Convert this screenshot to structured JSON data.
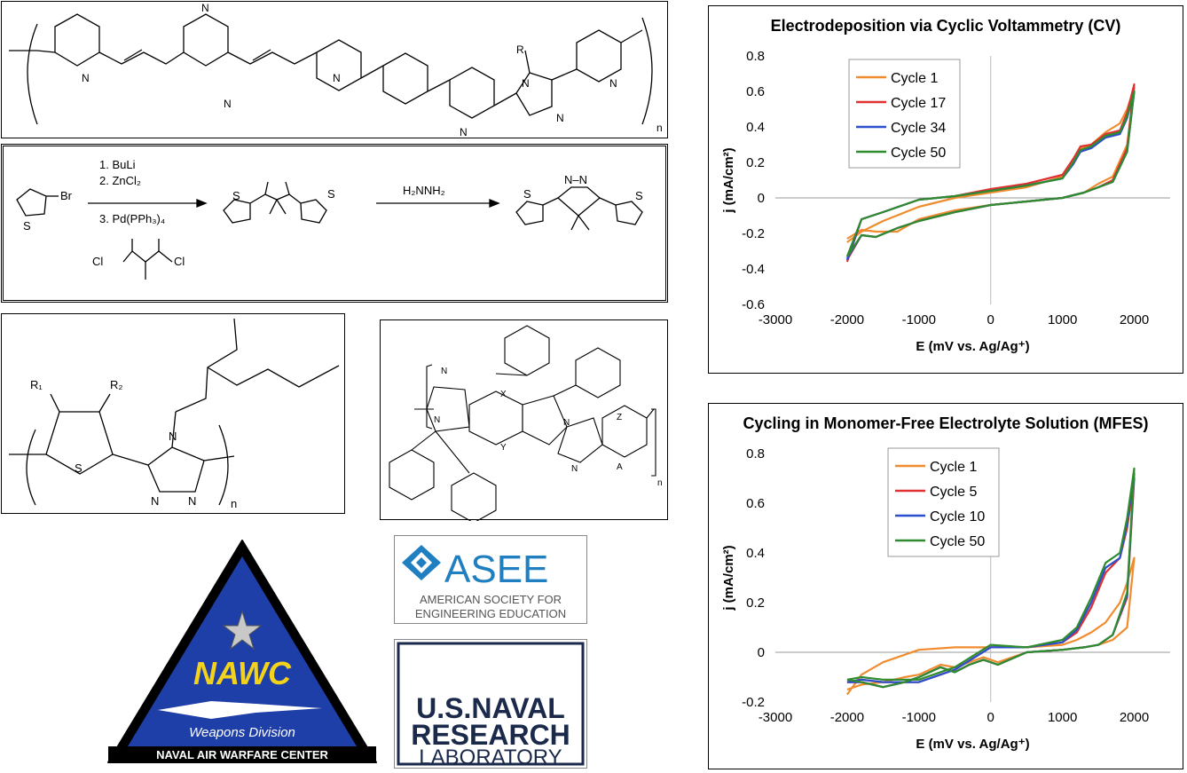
{
  "scheme": {
    "n": "n",
    "r": "R",
    "n_atom": "N",
    "s_atom": "S",
    "br": "Br",
    "cl": "Cl",
    "steps": [
      "1. BuLi",
      "2. ZnCl₂",
      "3. Pd(PPh₃)₄"
    ],
    "hydrazine": "H₂NNH₂",
    "nn": "N–N",
    "r1": "R₁",
    "r2": "R₂",
    "x": "X",
    "y": "Y",
    "z": "Z",
    "a": "A"
  },
  "logos": {
    "nawc_name": "NAWC",
    "nawc_division": "Weapons Division",
    "nawc_full": "NAVAL AIR WARFARE CENTER",
    "asee_name": "ASEE",
    "asee_line1": "AMERICAN SOCIETY FOR",
    "asee_line2": "ENGINEERING EDUCATION",
    "nrl_line1": "U.S.NAVAL",
    "nrl_line2": "RESEARCH",
    "nrl_line3": "LABORATORY"
  },
  "chart_data": [
    {
      "type": "line",
      "title": "Electrodeposition via Cyclic Voltammetry (CV)",
      "xlabel": "E (mV vs. Ag/Ag⁺)",
      "ylabel": "j (mA/cm²)",
      "xlim": [
        -3000,
        2500
      ],
      "ylim": [
        -0.6,
        0.8
      ],
      "xticks": [
        -3000,
        -2000,
        -1000,
        0,
        1000,
        2000
      ],
      "yticks": [
        0.8,
        0.6,
        0.4,
        0.2,
        0,
        -0.2,
        -0.4,
        -0.6
      ],
      "legend_position": "top-left",
      "series": [
        {
          "name": "Cycle 1",
          "color": "#f08c2e",
          "x": [
            -2000,
            -1800,
            -1500,
            -1000,
            -500,
            0,
            500,
            1000,
            1150,
            1250,
            1400,
            1600,
            1800,
            1900,
            2000,
            1900,
            1700,
            1500,
            1300,
            1100,
            1000,
            500,
            0,
            -500,
            -1000,
            -1300,
            -1600,
            -1800,
            -2000
          ],
          "y": [
            -0.25,
            -0.19,
            -0.13,
            -0.05,
            0.0,
            0.03,
            0.06,
            0.12,
            0.22,
            0.28,
            0.3,
            0.37,
            0.42,
            0.5,
            0.62,
            0.3,
            0.12,
            0.08,
            0.03,
            0.01,
            0.0,
            -0.02,
            -0.04,
            -0.07,
            -0.12,
            -0.19,
            -0.19,
            -0.18,
            -0.23
          ]
        },
        {
          "name": "Cycle 17",
          "color": "#e03030",
          "x": [
            -2000,
            -1800,
            -1500,
            -1000,
            -500,
            0,
            500,
            1000,
            1150,
            1250,
            1400,
            1600,
            1800,
            1900,
            2000,
            1900,
            1700,
            1500,
            1300,
            1100,
            1000,
            500,
            0,
            -500,
            -1000,
            -1300,
            -1600,
            -1800,
            -2000
          ],
          "y": [
            -0.36,
            -0.12,
            -0.08,
            -0.01,
            0.01,
            0.05,
            0.08,
            0.13,
            0.22,
            0.29,
            0.3,
            0.36,
            0.38,
            0.48,
            0.64,
            0.28,
            0.1,
            0.06,
            0.03,
            0.01,
            0.0,
            -0.02,
            -0.04,
            -0.08,
            -0.13,
            -0.17,
            -0.22,
            -0.21,
            -0.35
          ]
        },
        {
          "name": "Cycle 34",
          "color": "#2c4fd0",
          "x": [
            -2000,
            -1800,
            -1500,
            -1000,
            -500,
            0,
            500,
            1000,
            1150,
            1250,
            1400,
            1600,
            1800,
            1900,
            2000,
            1900,
            1700,
            1500,
            1300,
            1100,
            1000,
            500,
            0,
            -500,
            -1000,
            -1300,
            -1600,
            -1800,
            -2000
          ],
          "y": [
            -0.35,
            -0.12,
            -0.08,
            -0.01,
            0.01,
            0.04,
            0.07,
            0.11,
            0.19,
            0.26,
            0.28,
            0.34,
            0.36,
            0.45,
            0.6,
            0.26,
            0.09,
            0.06,
            0.03,
            0.01,
            0.0,
            -0.02,
            -0.04,
            -0.08,
            -0.13,
            -0.17,
            -0.22,
            -0.21,
            -0.34
          ]
        },
        {
          "name": "Cycle 50",
          "color": "#2e8b2e",
          "x": [
            -2000,
            -1800,
            -1500,
            -1000,
            -500,
            0,
            500,
            1000,
            1150,
            1250,
            1400,
            1600,
            1800,
            1900,
            2000,
            1900,
            1700,
            1500,
            1300,
            1100,
            1000,
            500,
            0,
            -500,
            -1000,
            -1300,
            -1600,
            -1800,
            -2000
          ],
          "y": [
            -0.33,
            -0.12,
            -0.08,
            -0.01,
            0.01,
            0.04,
            0.07,
            0.11,
            0.2,
            0.27,
            0.29,
            0.35,
            0.37,
            0.46,
            0.6,
            0.26,
            0.09,
            0.06,
            0.03,
            0.01,
            0.0,
            -0.02,
            -0.04,
            -0.08,
            -0.13,
            -0.17,
            -0.22,
            -0.21,
            -0.33
          ]
        }
      ]
    },
    {
      "type": "line",
      "title": "Cycling in Monomer-Free Electrolyte Solution (MFES)",
      "xlabel": "E (mV vs. Ag/Ag⁺)",
      "ylabel": "j (mA/cm²)",
      "xlim": [
        -3000,
        2500
      ],
      "ylim": [
        -0.2,
        0.8
      ],
      "xticks": [
        -3000,
        -2000,
        -1000,
        0,
        1000,
        2000
      ],
      "yticks": [
        0.8,
        0.6,
        0.4,
        0.2,
        0,
        -0.2
      ],
      "legend_position": "top-center",
      "series": [
        {
          "name": "Cycle 1",
          "color": "#f08c2e",
          "x": [
            -2000,
            -1800,
            -1500,
            -1000,
            -500,
            0,
            500,
            1000,
            1200,
            1400,
            1600,
            1800,
            1900,
            2000,
            1900,
            1700,
            1500,
            1300,
            1000,
            500,
            100,
            -100,
            -300,
            -500,
            -700,
            -1000,
            -1200,
            -1500,
            -1800,
            -2000
          ],
          "y": [
            -0.17,
            -0.09,
            -0.04,
            0.01,
            0.02,
            0.02,
            0.02,
            0.03,
            0.05,
            0.08,
            0.12,
            0.2,
            0.28,
            0.38,
            0.1,
            0.05,
            0.03,
            0.02,
            0.01,
            0.0,
            -0.04,
            -0.02,
            -0.04,
            -0.06,
            -0.05,
            -0.09,
            -0.1,
            -0.12,
            -0.13,
            -0.15
          ]
        },
        {
          "name": "Cycle 5",
          "color": "#e03030",
          "x": [
            -2000,
            -1800,
            -1500,
            -1000,
            -500,
            0,
            500,
            1000,
            1200,
            1400,
            1600,
            1800,
            1900,
            2000,
            1900,
            1700,
            1500,
            1300,
            1000,
            500,
            100,
            -100,
            -300,
            -500,
            -700,
            -1000,
            -1200,
            -1500,
            -1800,
            -2000
          ],
          "y": [
            -0.12,
            -0.11,
            -0.12,
            -0.12,
            -0.07,
            0.02,
            0.02,
            0.04,
            0.08,
            0.18,
            0.32,
            0.38,
            0.5,
            0.7,
            0.22,
            0.07,
            0.03,
            0.02,
            0.01,
            0.0,
            -0.05,
            -0.03,
            -0.05,
            -0.08,
            -0.06,
            -0.1,
            -0.12,
            -0.14,
            -0.12,
            -0.12
          ]
        },
        {
          "name": "Cycle 10",
          "color": "#2c4fd0",
          "x": [
            -2000,
            -1800,
            -1500,
            -1000,
            -500,
            0,
            500,
            1000,
            1200,
            1400,
            1600,
            1800,
            1900,
            2000,
            1900,
            1700,
            1500,
            1300,
            1000,
            500,
            100,
            -100,
            -300,
            -500,
            -700,
            -1000,
            -1200,
            -1500,
            -1800,
            -2000
          ],
          "y": [
            -0.12,
            -0.11,
            -0.12,
            -0.12,
            -0.07,
            0.02,
            0.02,
            0.04,
            0.09,
            0.2,
            0.34,
            0.38,
            0.52,
            0.72,
            0.23,
            0.07,
            0.03,
            0.02,
            0.01,
            0.0,
            -0.05,
            -0.03,
            -0.05,
            -0.08,
            -0.06,
            -0.1,
            -0.12,
            -0.14,
            -0.12,
            -0.12
          ]
        },
        {
          "name": "Cycle 50",
          "color": "#2e8b2e",
          "x": [
            -2000,
            -1800,
            -1500,
            -1000,
            -500,
            0,
            500,
            1000,
            1200,
            1400,
            1600,
            1800,
            1900,
            2000,
            1900,
            1700,
            1500,
            1300,
            1000,
            500,
            100,
            -100,
            -300,
            -500,
            -700,
            -1000,
            -1200,
            -1500,
            -1800,
            -2000
          ],
          "y": [
            -0.11,
            -0.1,
            -0.11,
            -0.11,
            -0.06,
            0.03,
            0.02,
            0.05,
            0.1,
            0.22,
            0.36,
            0.4,
            0.54,
            0.74,
            0.24,
            0.07,
            0.03,
            0.02,
            0.01,
            0.0,
            -0.05,
            -0.03,
            -0.05,
            -0.08,
            -0.06,
            -0.1,
            -0.12,
            -0.14,
            -0.12,
            -0.11
          ]
        }
      ]
    }
  ]
}
